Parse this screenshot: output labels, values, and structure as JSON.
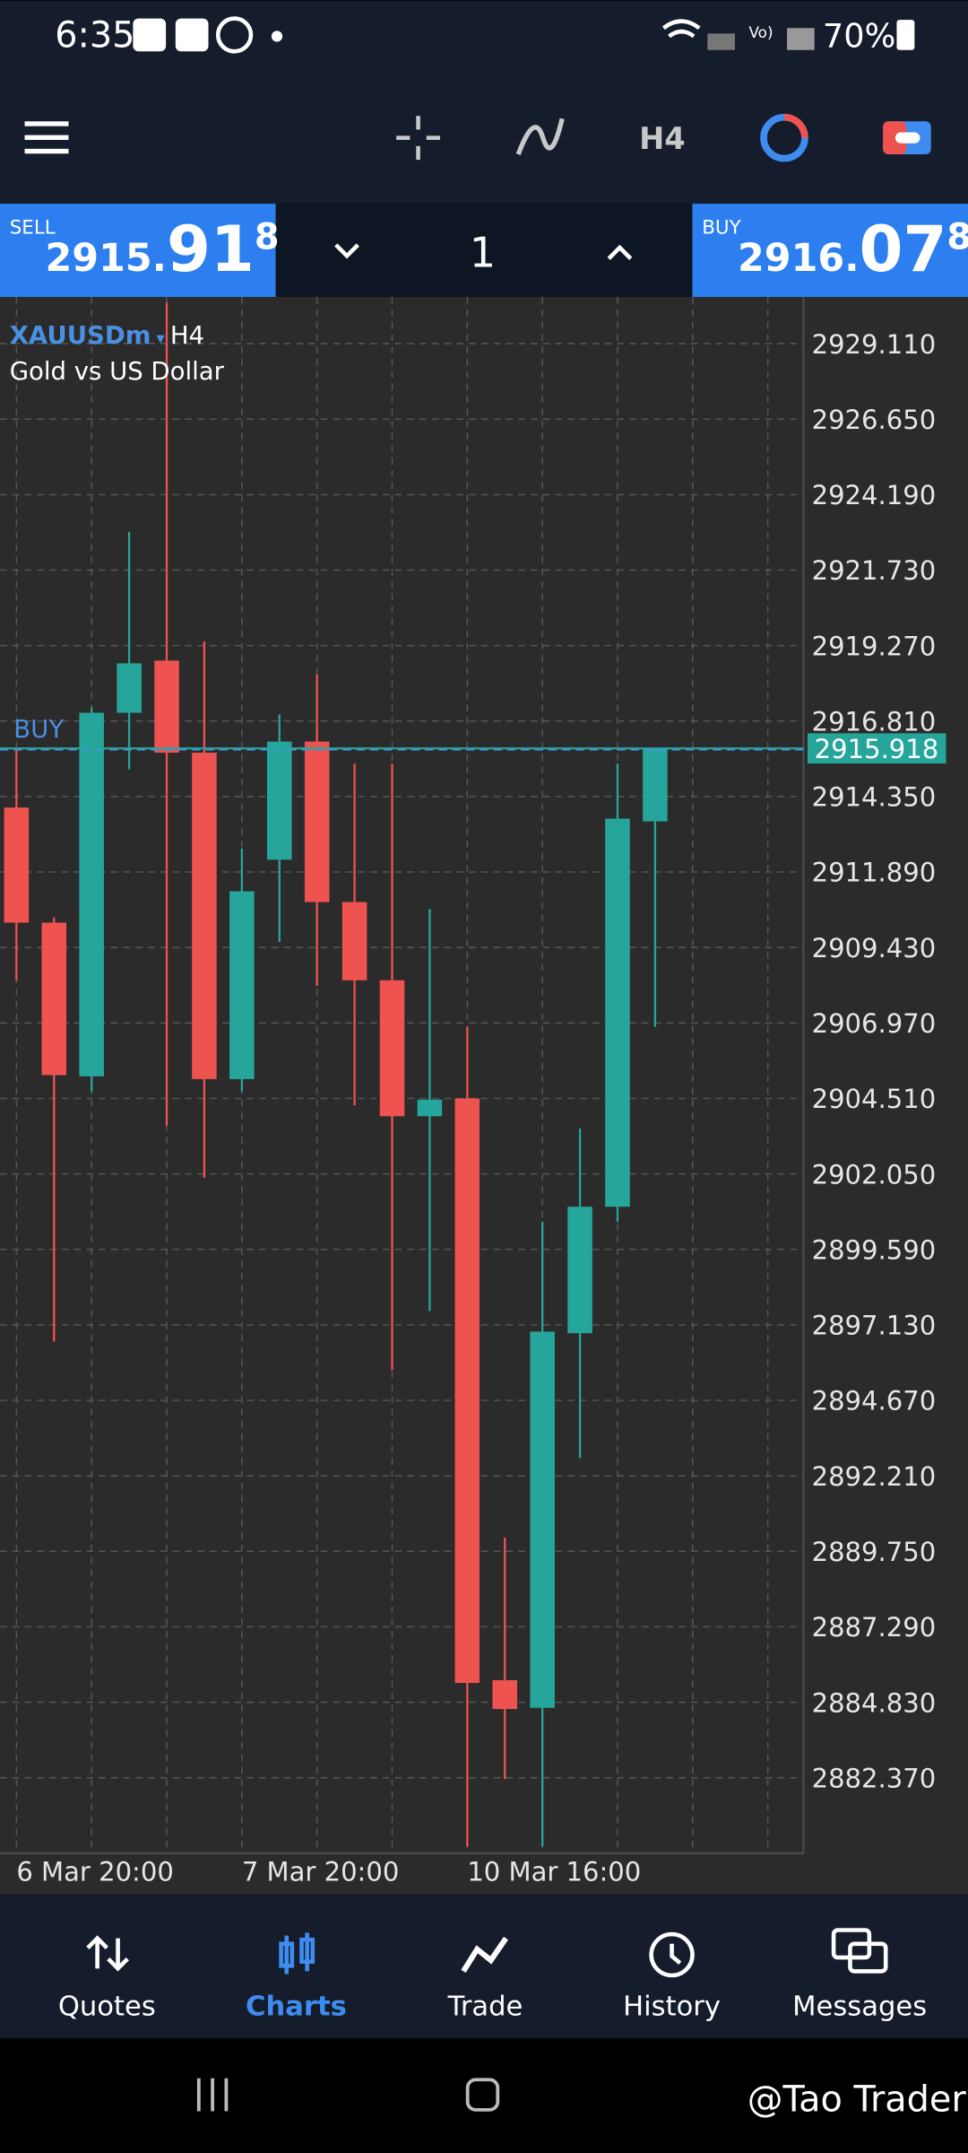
{
  "status_bar": {
    "time": "6:35",
    "battery": "70%"
  },
  "toolbar": {
    "timeframe": "H4"
  },
  "trade_panel": {
    "sell": {
      "label": "SELL",
      "price_main": "2915.",
      "price_big": "91",
      "price_sup": "8"
    },
    "volume": "1",
    "buy": {
      "label": "BUY",
      "price_main": "2916.",
      "price_big": "07",
      "price_sup": "8"
    }
  },
  "chart_data": {
    "type": "candlestick",
    "symbol": "XAUUSDm",
    "timeframe": "H4",
    "description": "Gold vs US Dollar",
    "categories": [
      "6 Mar 20:00",
      null,
      null,
      null,
      null,
      null,
      "7 Mar 20:00",
      null,
      null,
      null,
      null,
      null,
      "10 Mar 16:00",
      null,
      null,
      null,
      null,
      null
    ],
    "open": [
      2913.99,
      2910.24,
      2905.23,
      2917.08,
      2918.78,
      2915.78,
      2905.14,
      2912.29,
      2916.14,
      2910.91,
      2908.36,
      2903.93,
      2904.51,
      2885.55,
      2884.65,
      2896.86,
      2900.98,
      2913.54
    ],
    "high": [
      2915.92,
      2910.41,
      2917.26,
      2922.98,
      2930.45,
      2919.4,
      2912.65,
      2917.03,
      2918.33,
      2915.42,
      2915.42,
      2910.68,
      2906.84,
      2890.2,
      2900.49,
      2903.53,
      2915.42,
      2915.92
    ],
    "low": [
      2908.36,
      2896.59,
      2904.73,
      2915.24,
      2903.62,
      2901.92,
      2904.73,
      2909.61,
      2908.18,
      2904.29,
      2895.65,
      2897.58,
      2880.13,
      2882.33,
      2880.13,
      2892.79,
      2900.49,
      2906.84
    ],
    "close": [
      2910.24,
      2905.27,
      2917.08,
      2918.69,
      2915.78,
      2905.14,
      2911.26,
      2916.14,
      2910.91,
      2908.36,
      2903.93,
      2904.47,
      2885.46,
      2884.61,
      2896.91,
      2900.98,
      2913.63,
      2915.918
    ],
    "up_color": "#26a69a",
    "down_color": "#ef5350",
    "ylim": [
      2879.91,
      2930.54
    ],
    "yticks": [
      {
        "value": 2929.11,
        "label": "2929.110"
      },
      {
        "value": 2926.65,
        "label": "2926.650"
      },
      {
        "value": 2924.19,
        "label": "2924.190"
      },
      {
        "value": 2921.73,
        "label": "2921.730"
      },
      {
        "value": 2919.27,
        "label": "2919.270"
      },
      {
        "value": 2916.81,
        "label": "2916.810"
      },
      {
        "value": 2914.35,
        "label": "2914.350"
      },
      {
        "value": 2911.89,
        "label": "2911.890"
      },
      {
        "value": 2909.43,
        "label": "2909.430"
      },
      {
        "value": 2906.97,
        "label": "2906.970"
      },
      {
        "value": 2904.51,
        "label": "2904.510"
      },
      {
        "value": 2902.05,
        "label": "2902.050"
      },
      {
        "value": 2899.59,
        "label": "2899.590"
      },
      {
        "value": 2897.13,
        "label": "2897.130"
      },
      {
        "value": 2894.67,
        "label": "2894.670"
      },
      {
        "value": 2892.21,
        "label": "2892.210"
      },
      {
        "value": 2889.75,
        "label": "2889.750"
      },
      {
        "value": 2887.29,
        "label": "2887.290"
      },
      {
        "value": 2884.83,
        "label": "2884.830"
      },
      {
        "value": 2882.37,
        "label": "2882.370"
      }
    ],
    "grid": true,
    "price_line": {
      "label": "BUY",
      "value": 2915.918
    }
  },
  "bottom_nav": {
    "items": [
      "Quotes",
      "Charts",
      "Trade",
      "History",
      "Messages"
    ],
    "active": "Charts"
  },
  "watermark": "@Tao Trader"
}
